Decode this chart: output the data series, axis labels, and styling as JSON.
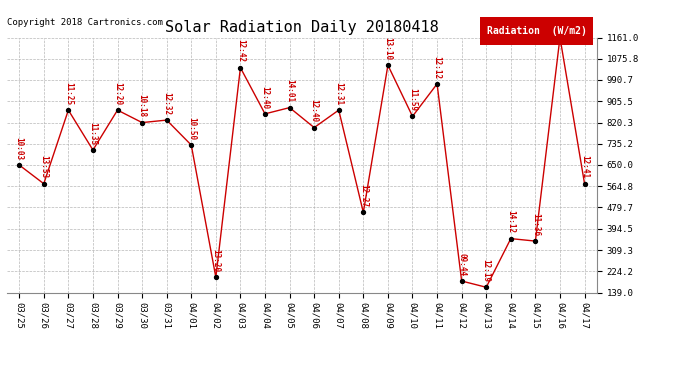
{
  "title": "Solar Radiation Daily 20180418",
  "copyright": "Copyright 2018 Cartronics.com",
  "legend_label": "Radiation  (W/m2)",
  "x_labels": [
    "03/25",
    "03/26",
    "03/27",
    "03/28",
    "03/29",
    "03/30",
    "03/31",
    "04/01",
    "04/02",
    "04/03",
    "04/04",
    "04/05",
    "04/06",
    "04/07",
    "04/08",
    "04/09",
    "04/10",
    "04/11",
    "04/12",
    "04/13",
    "04/14",
    "04/15",
    "04/16",
    "04/17"
  ],
  "y_values": [
    650,
    575,
    870,
    710,
    870,
    820,
    830,
    730,
    200,
    1040,
    855,
    880,
    800,
    870,
    460,
    1050,
    845,
    975,
    185,
    160,
    355,
    345,
    1161,
    575
  ],
  "point_labels": [
    "10:03",
    "13:53",
    "11:25",
    "11:35",
    "12:20",
    "10:18",
    "12:32",
    "10:50",
    "13:20",
    "12:42",
    "12:40",
    "14:01",
    "12:40",
    "12:31",
    "12:27",
    "13:10",
    "11:59",
    "12:12",
    "09:44",
    "12:19",
    "14:12",
    "11:36",
    "",
    "12:41"
  ],
  "ylim_min": 139.0,
  "ylim_max": 1161.0,
  "yticks": [
    139.0,
    224.2,
    309.3,
    394.5,
    479.7,
    564.8,
    650.0,
    735.2,
    820.3,
    905.5,
    990.7,
    1075.8,
    1161.0
  ],
  "ytick_labels": [
    "139.0",
    "224.2",
    "309.3",
    "394.5",
    "479.7",
    "564.8",
    "650.0",
    "735.2",
    "820.3",
    "905.5",
    "990.7",
    "1075.8",
    "1161.0"
  ],
  "line_color": "#cc0000",
  "marker_color": "#000000",
  "bg_color": "#ffffff",
  "grid_color": "#b0b0b0",
  "title_fontsize": 11,
  "tick_fontsize": 6.5,
  "point_label_fontsize": 5.5,
  "copyright_fontsize": 6.5,
  "legend_fontsize": 7,
  "legend_bg": "#cc0000",
  "legend_fg": "#ffffff"
}
